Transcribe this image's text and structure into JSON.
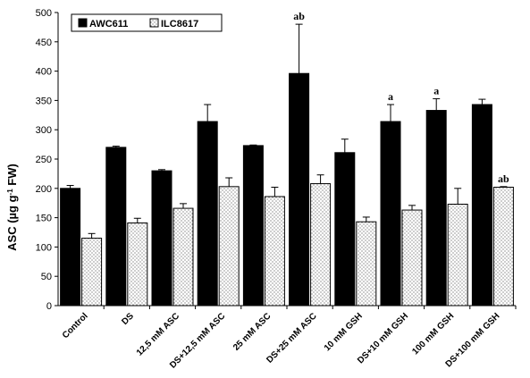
{
  "chart_data": {
    "type": "bar",
    "categories": [
      "Control",
      "DS",
      "12,5 mM ASC",
      "DS+12,5 mM ASC",
      "25 mM ASC",
      "DS+25 mM ASC",
      "10 mM GSH",
      "DS+10 mM GSH",
      "100 mM GSH",
      "DS+100 mM GSH"
    ],
    "series": [
      {
        "name": "AWC611",
        "color": "#000000",
        "values": [
          200,
          270,
          230,
          314,
          273,
          396,
          261,
          314,
          333,
          343
        ],
        "errors": [
          5,
          2,
          2,
          29,
          1,
          84,
          23,
          29,
          20,
          9
        ]
      },
      {
        "name": "ILC8617",
        "color": "#ffffff",
        "pattern": "dots",
        "values": [
          115,
          141,
          166,
          203,
          186,
          208,
          143,
          163,
          173,
          202
        ],
        "errors": [
          8,
          8,
          8,
          15,
          16,
          15,
          8,
          8,
          27,
          1
        ]
      }
    ],
    "annotations": [
      {
        "category": "DS+25 mM ASC",
        "series": "AWC611",
        "text": "ab"
      },
      {
        "category": "DS+10 mM GSH",
        "series": "AWC611",
        "text": "a"
      },
      {
        "category": "100 mM GSH",
        "series": "AWC611",
        "text": "a"
      },
      {
        "category": "DS+100 mM GSH",
        "series": "ILC8617",
        "text": "ab"
      }
    ],
    "ylabel_main": "ASC (µg g",
    "ylabel_sup": "-1",
    "ylabel_tail": " FW)",
    "ylim": [
      0,
      500
    ],
    "yticks": [
      0,
      50,
      100,
      150,
      200,
      250,
      300,
      350,
      400,
      450,
      500
    ],
    "legend_position": "top-left",
    "grid": false
  }
}
